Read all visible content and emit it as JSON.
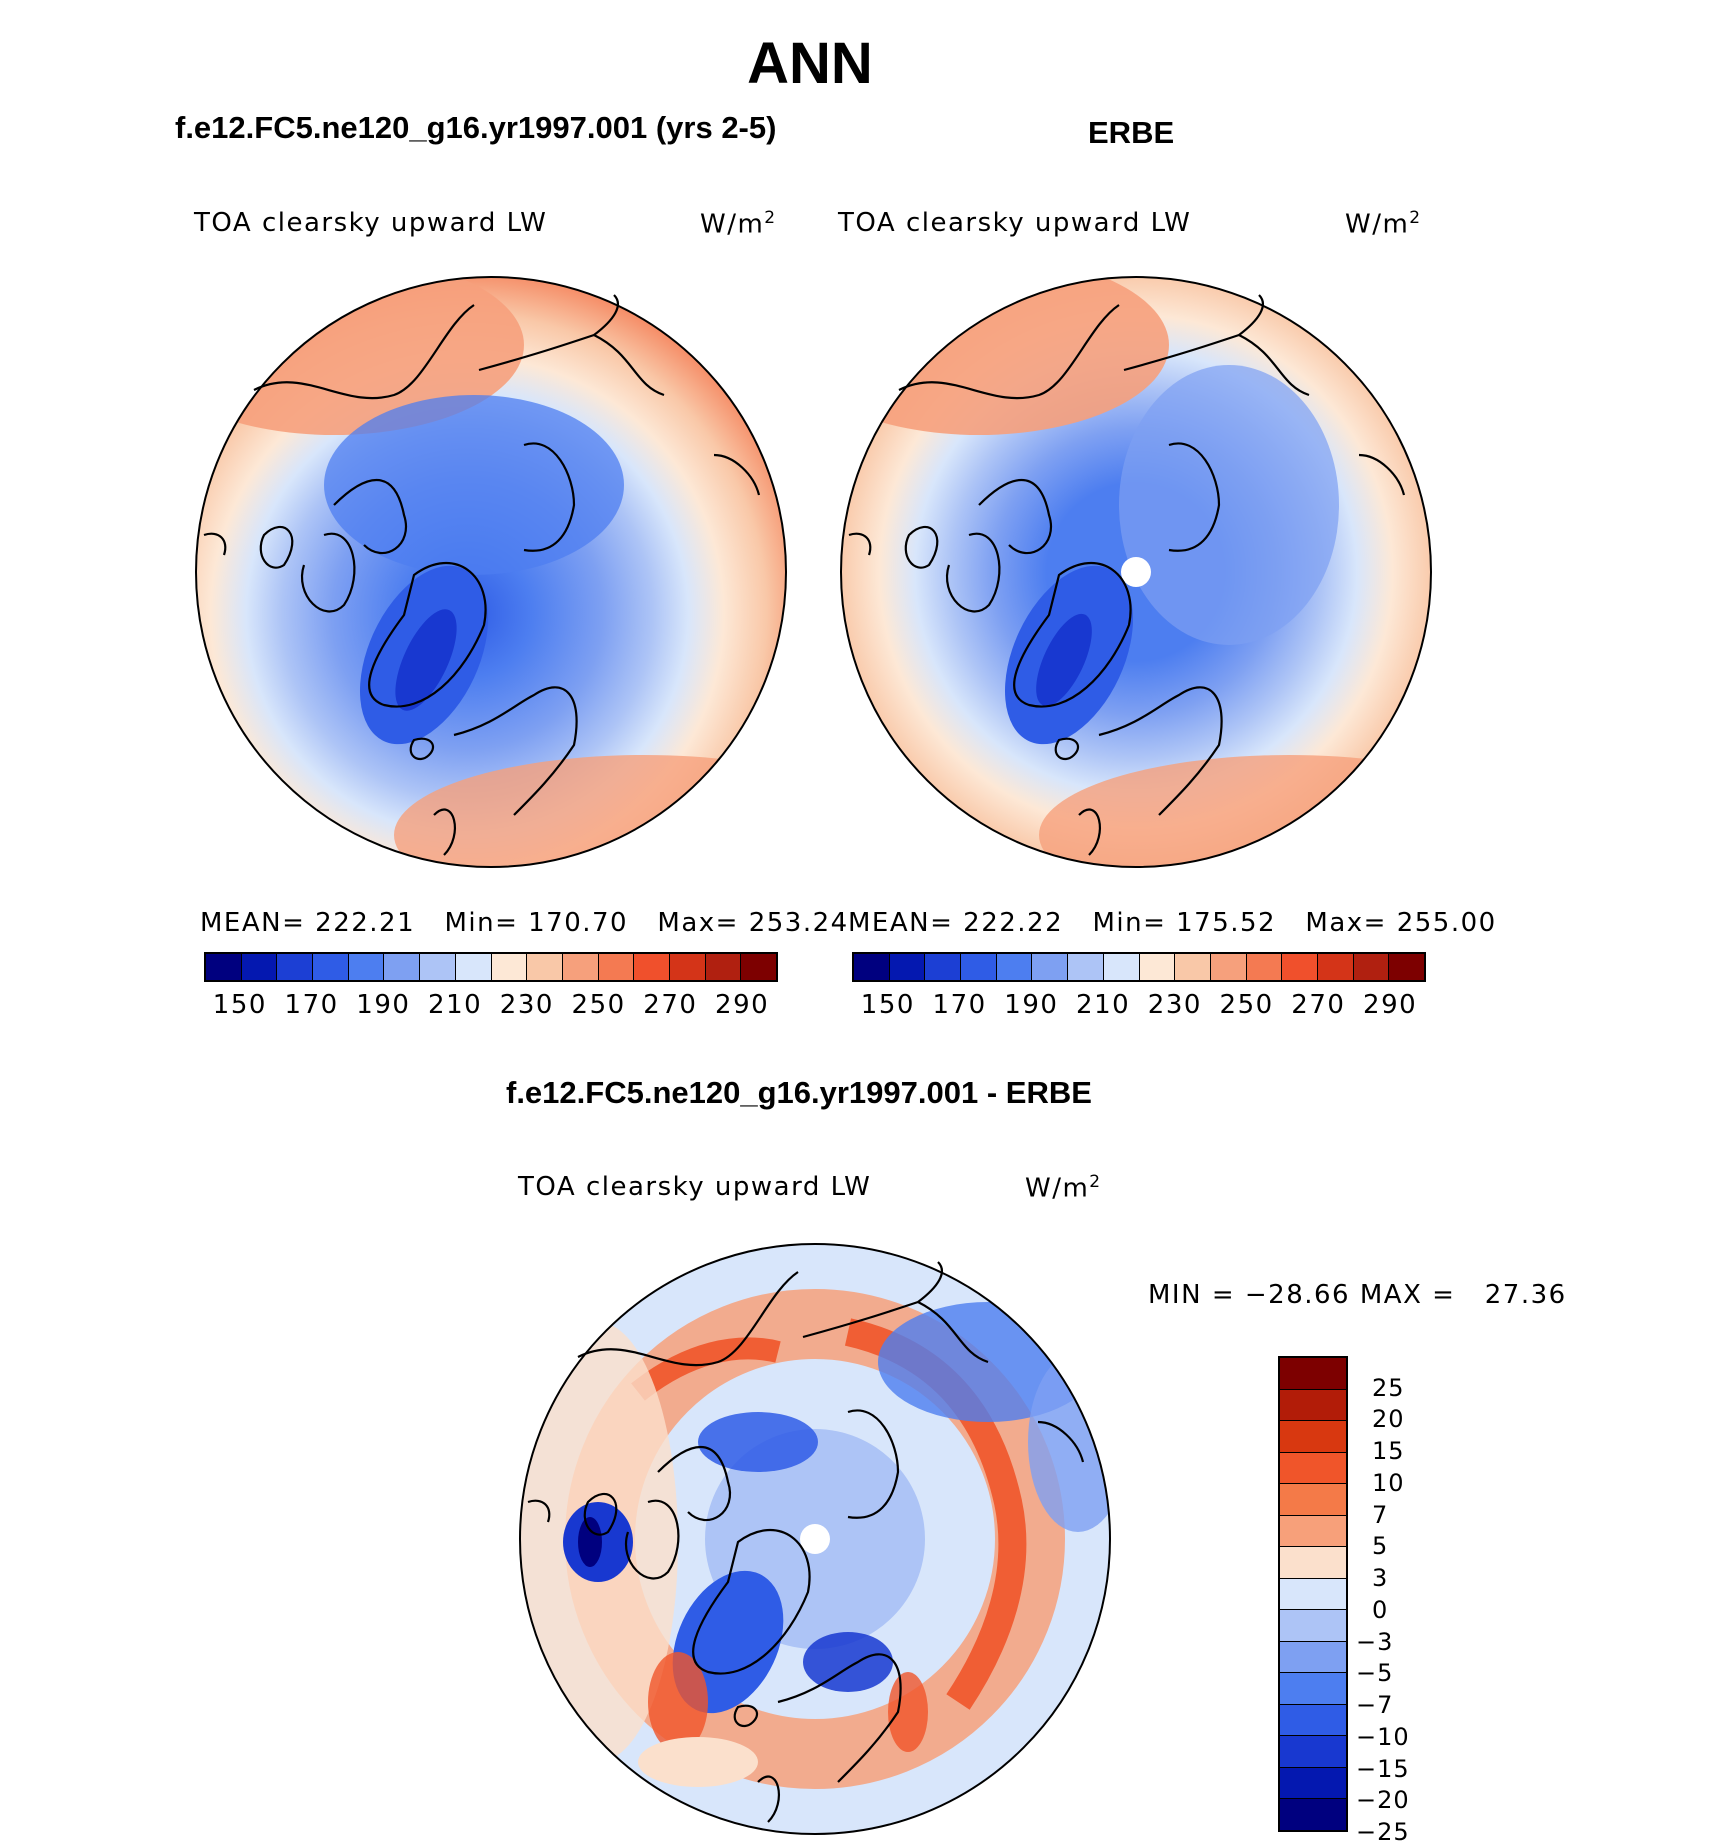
{
  "title": "ANN",
  "panels": [
    {
      "id": "model",
      "title": "f.e12.FC5.ne120_g16.yr1997.001 (yrs 2-5)",
      "variable": "TOA clearsky upward LW",
      "units": "W/m",
      "units_sup": "2",
      "stats": {
        "mean_label": "MEAN=",
        "mean": "222.21",
        "min_label": "Min=",
        "min": "170.70",
        "max_label": "Max=",
        "max": "253.24"
      }
    },
    {
      "id": "obs",
      "title": "ERBE",
      "variable": "TOA clearsky upward LW",
      "units": "W/m",
      "units_sup": "2",
      "stats": {
        "mean_label": "MEAN=",
        "mean": "222.22",
        "min_label": "Min=",
        "min": "175.52",
        "max_label": "Max=",
        "max": "255.00"
      }
    }
  ],
  "colorbar_abs": {
    "colors": [
      "#00007f",
      "#0418b0",
      "#1c3fd4",
      "#2f5ce6",
      "#4d7ef0",
      "#7ea0f2",
      "#adc4f6",
      "#d8e6fb",
      "#fde8d6",
      "#f9c8a8",
      "#f6a07c",
      "#f47a52",
      "#f0502c",
      "#d43418",
      "#b02010",
      "#7d0000"
    ],
    "tick_labels": [
      "150",
      "170",
      "190",
      "210",
      "230",
      "250",
      "270",
      "290"
    ]
  },
  "diff_panel": {
    "title": "f.e12.FC5.ne120_g16.yr1997.001 - ERBE",
    "variable": "TOA clearsky upward LW",
    "units": "W/m",
    "units_sup": "2",
    "minmax": {
      "min_label": "MIN =",
      "min": "−28.66",
      "max_label": "MAX =",
      "max": "27.36"
    }
  },
  "colorbar_diff": {
    "colors": [
      "#7d0000",
      "#b21c08",
      "#d83810",
      "#f0552a",
      "#f47a48",
      "#f7a07a",
      "#fbe0cc",
      "#d8e6fb",
      "#adc4f6",
      "#7ea0f2",
      "#4d7ef0",
      "#2f5ce6",
      "#1838d0",
      "#0418b0",
      "#00007f"
    ],
    "tick_labels": [
      "25",
      "20",
      "15",
      "10",
      "7",
      "5",
      "3",
      "0",
      "−3",
      "−5",
      "−7",
      "−10",
      "−15",
      "−20",
      "−25"
    ]
  },
  "colors": {
    "coast": "#000000",
    "circle": "#000000",
    "pole": "#ffffff"
  }
}
